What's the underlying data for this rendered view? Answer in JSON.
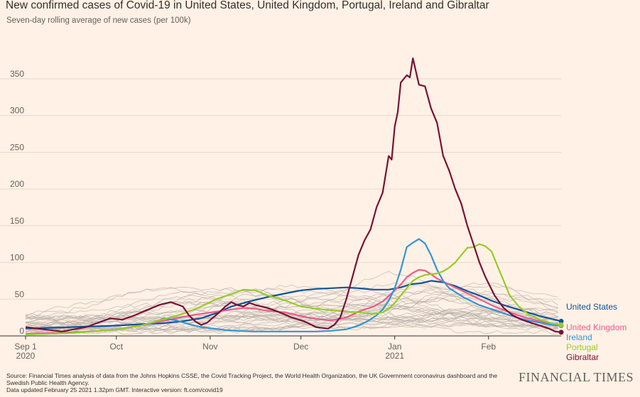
{
  "header": {
    "title": "New confirmed cases of Covid-19 in United States, United Kingdom, Portugal, Ireland and Gibraltar",
    "subtitle": "Seven-day rolling average of new cases (per 100k)"
  },
  "footer": {
    "source_line1": "Source: Financial Times analysis of data from the Johns Hopkins CSSE, the Covid Tracking Project, the World Health Organization, the UK Government coronavirus dashboard and the",
    "source_line2": "Swedish Public Health Agency.",
    "updated": "Data updated February 25 2021 1.32pm GMT. Interactive version: ft.com/covid19",
    "logo": "FINANCIAL TIMES"
  },
  "chart_data": {
    "type": "line",
    "title": "New confirmed cases of Covid-19 in United States, United Kingdom, Portugal, Ireland and Gibraltar",
    "subtitle": "Seven-day rolling average of new cases (per 100k)",
    "xlabel": "",
    "ylabel": "",
    "x_unit": "days since Sep 1 2020",
    "xlim": [
      0,
      177
    ],
    "ylim": [
      0,
      380
    ],
    "y_ticks": [
      0,
      50,
      100,
      150,
      200,
      250,
      300,
      350
    ],
    "x_ticks": [
      {
        "x": 0,
        "label": "Sep 1",
        "sublabel": "2020"
      },
      {
        "x": 30,
        "label": "Oct",
        "sublabel": ""
      },
      {
        "x": 61,
        "label": "Nov",
        "sublabel": ""
      },
      {
        "x": 91,
        "label": "Dec",
        "sublabel": ""
      },
      {
        "x": 122,
        "label": "Jan",
        "sublabel": "2021"
      },
      {
        "x": 153,
        "label": "Feb",
        "sublabel": ""
      }
    ],
    "grid": true,
    "legend": "end-labels",
    "background_lines_color": "#b8b0aa",
    "series": [
      {
        "name": "United States",
        "color": "#0f5499",
        "x": [
          0,
          8,
          15,
          22,
          30,
          38,
          45,
          52,
          58,
          63,
          68,
          74,
          80,
          86,
          91,
          96,
          101,
          106,
          110,
          115,
          120,
          124,
          127,
          131,
          134,
          138,
          142,
          146,
          150,
          154,
          158,
          162,
          166,
          170,
          174,
          177
        ],
        "y": [
          10,
          11,
          12,
          13,
          14,
          16,
          17,
          20,
          24,
          31,
          40,
          47,
          53,
          58,
          62,
          64,
          65,
          66,
          65,
          63,
          63,
          66,
          70,
          72,
          75,
          73,
          68,
          61,
          55,
          48,
          42,
          37,
          32,
          27,
          23,
          20
        ]
      },
      {
        "name": "United Kingdom",
        "color": "#e95d8c",
        "x": [
          0,
          8,
          15,
          22,
          30,
          38,
          45,
          52,
          58,
          63,
          68,
          72,
          76,
          80,
          86,
          91,
          96,
          101,
          106,
          110,
          115,
          118,
          121,
          124,
          126,
          128,
          130,
          132,
          134,
          136,
          140,
          145,
          150,
          155,
          160,
          165,
          170,
          174,
          177
        ],
        "y": [
          3,
          4,
          5,
          6,
          9,
          14,
          20,
          26,
          30,
          33,
          36,
          38,
          37,
          34,
          32,
          27,
          23,
          21,
          25,
          33,
          40,
          47,
          58,
          70,
          80,
          86,
          90,
          89,
          84,
          78,
          70,
          60,
          50,
          40,
          32,
          25,
          20,
          17,
          15
        ]
      },
      {
        "name": "Ireland",
        "color": "#3296d3",
        "x": [
          0,
          8,
          15,
          22,
          30,
          38,
          42,
          46,
          50,
          54,
          58,
          62,
          66,
          70,
          75,
          80,
          86,
          91,
          96,
          101,
          106,
          110,
          113,
          116,
          118,
          120,
          122,
          124,
          126,
          128,
          130,
          132,
          134,
          136,
          138,
          140,
          145,
          150,
          155,
          160,
          165,
          170,
          174,
          177
        ],
        "y": [
          2,
          3,
          4,
          6,
          9,
          14,
          18,
          24,
          21,
          16,
          12,
          10,
          8,
          7,
          6,
          6,
          6,
          6,
          6,
          7,
          9,
          14,
          20,
          28,
          36,
          48,
          65,
          90,
          121,
          127,
          132,
          126,
          110,
          90,
          75,
          65,
          52,
          42,
          35,
          28,
          22,
          18,
          15,
          14
        ]
      },
      {
        "name": "Portugal",
        "color": "#96cc28",
        "x": [
          0,
          8,
          15,
          22,
          30,
          38,
          45,
          52,
          58,
          63,
          68,
          72,
          76,
          80,
          86,
          91,
          96,
          101,
          106,
          110,
          115,
          118,
          120,
          122,
          124,
          126,
          128,
          130,
          132,
          134,
          136,
          138,
          140,
          142,
          144,
          146,
          148,
          150,
          152,
          154,
          156,
          158,
          160,
          163,
          166,
          170,
          174,
          177
        ],
        "y": [
          2,
          3,
          4,
          6,
          9,
          14,
          22,
          30,
          40,
          50,
          57,
          63,
          62,
          55,
          48,
          40,
          37,
          35,
          33,
          32,
          30,
          32,
          37,
          45,
          55,
          65,
          75,
          80,
          83,
          84,
          85,
          88,
          93,
          100,
          110,
          120,
          121,
          125,
          122,
          115,
          95,
          75,
          55,
          40,
          30,
          22,
          17,
          15
        ]
      },
      {
        "name": "Gibraltar",
        "color": "#7a1035",
        "x": [
          0,
          4,
          8,
          12,
          16,
          20,
          24,
          28,
          32,
          36,
          40,
          44,
          48,
          52,
          54,
          56,
          58,
          60,
          62,
          64,
          66,
          68,
          70,
          72,
          74,
          76,
          78,
          80,
          84,
          88,
          92,
          96,
          100,
          102,
          104,
          106,
          108,
          110,
          112,
          114,
          116,
          118,
          120,
          121,
          122,
          123,
          124,
          126,
          127,
          128,
          130,
          132,
          134,
          136,
          138,
          140,
          142,
          144,
          146,
          148,
          150,
          152,
          155,
          158,
          161,
          164,
          167,
          170,
          173,
          175,
          177
        ],
        "y": [
          12,
          10,
          8,
          6,
          9,
          12,
          18,
          24,
          22,
          28,
          35,
          42,
          46,
          40,
          28,
          20,
          15,
          18,
          25,
          32,
          40,
          46,
          42,
          40,
          45,
          42,
          40,
          38,
          32,
          25,
          20,
          12,
          10,
          15,
          25,
          50,
          80,
          110,
          130,
          145,
          175,
          195,
          245,
          240,
          285,
          305,
          345,
          355,
          352,
          378,
          342,
          340,
          310,
          290,
          245,
          225,
          200,
          180,
          150,
          125,
          100,
          80,
          55,
          38,
          28,
          22,
          18,
          14,
          10,
          6,
          5
        ]
      }
    ]
  }
}
